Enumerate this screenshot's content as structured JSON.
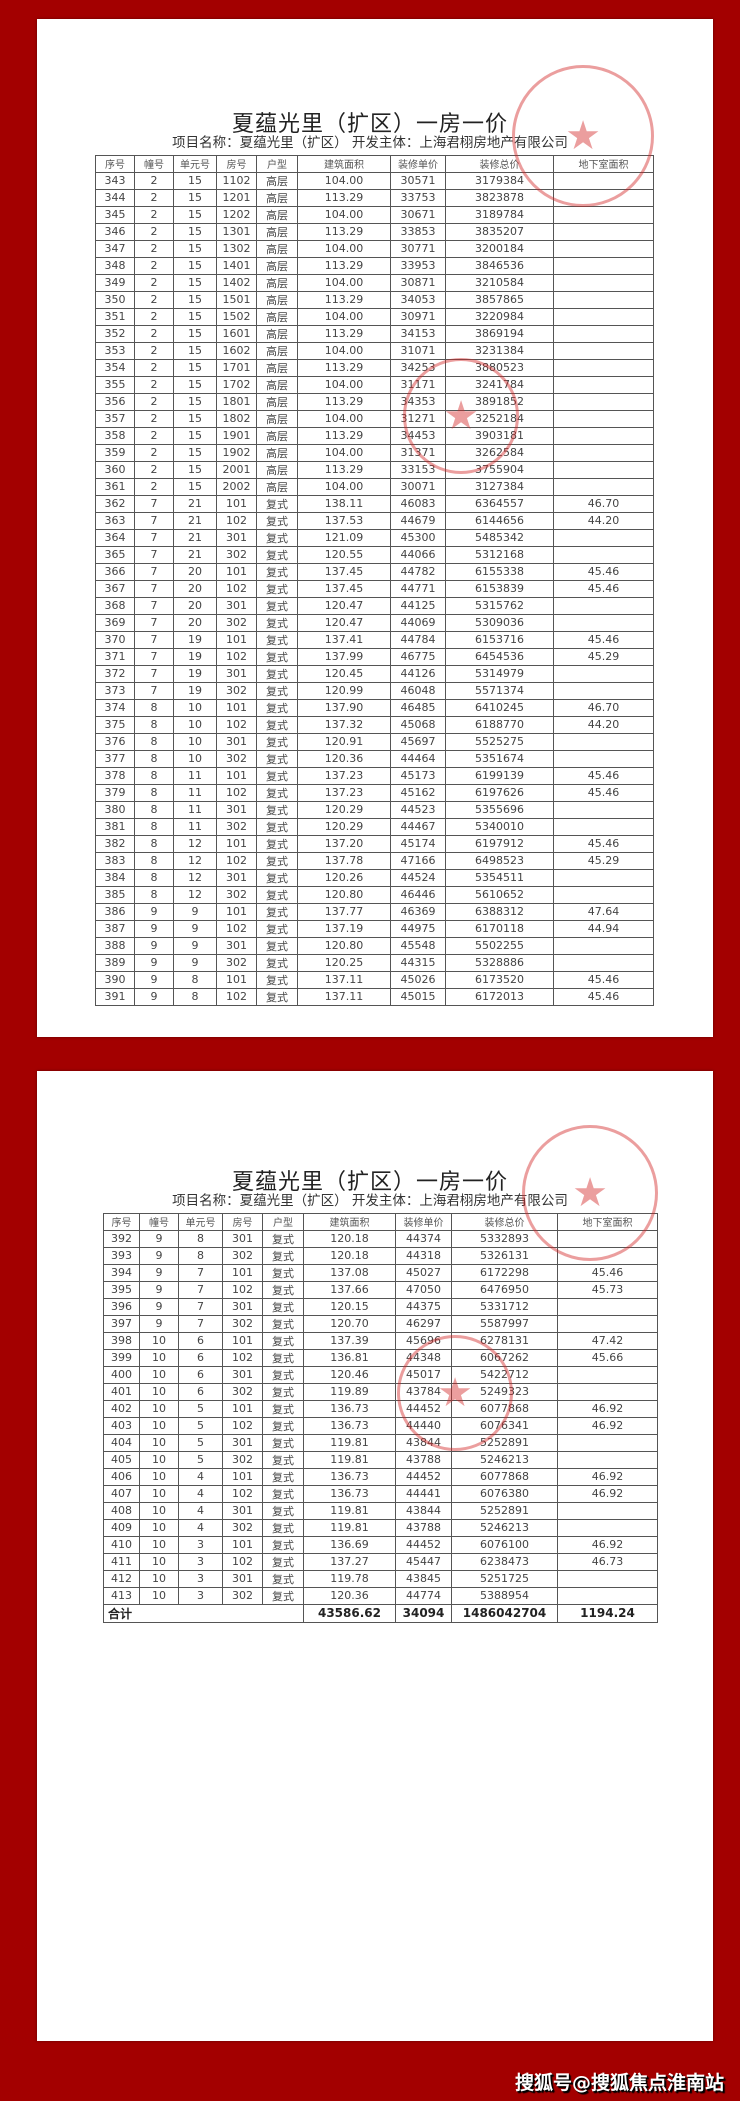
{
  "document": {
    "title": "夏蕴光里（扩区）一房一价",
    "subtitle": "项目名称：夏蕴光里（扩区）   开发主体：上海君栩房地产有限公司",
    "columns": [
      "序号",
      "幢号",
      "单元号",
      "房号",
      "户型",
      "建筑面积",
      "装修单价",
      "装修总价",
      "地下室面积"
    ]
  },
  "pages": [
    {
      "rows": [
        [
          "343",
          "2",
          "15",
          "1102",
          "高层",
          "104.00",
          "30571",
          "3179384",
          ""
        ],
        [
          "344",
          "2",
          "15",
          "1201",
          "高层",
          "113.29",
          "33753",
          "3823878",
          ""
        ],
        [
          "345",
          "2",
          "15",
          "1202",
          "高层",
          "104.00",
          "30671",
          "3189784",
          ""
        ],
        [
          "346",
          "2",
          "15",
          "1301",
          "高层",
          "113.29",
          "33853",
          "3835207",
          ""
        ],
        [
          "347",
          "2",
          "15",
          "1302",
          "高层",
          "104.00",
          "30771",
          "3200184",
          ""
        ],
        [
          "348",
          "2",
          "15",
          "1401",
          "高层",
          "113.29",
          "33953",
          "3846536",
          ""
        ],
        [
          "349",
          "2",
          "15",
          "1402",
          "高层",
          "104.00",
          "30871",
          "3210584",
          ""
        ],
        [
          "350",
          "2",
          "15",
          "1501",
          "高层",
          "113.29",
          "34053",
          "3857865",
          ""
        ],
        [
          "351",
          "2",
          "15",
          "1502",
          "高层",
          "104.00",
          "30971",
          "3220984",
          ""
        ],
        [
          "352",
          "2",
          "15",
          "1601",
          "高层",
          "113.29",
          "34153",
          "3869194",
          ""
        ],
        [
          "353",
          "2",
          "15",
          "1602",
          "高层",
          "104.00",
          "31071",
          "3231384",
          ""
        ],
        [
          "354",
          "2",
          "15",
          "1701",
          "高层",
          "113.29",
          "34253",
          "3880523",
          ""
        ],
        [
          "355",
          "2",
          "15",
          "1702",
          "高层",
          "104.00",
          "31171",
          "3241784",
          ""
        ],
        [
          "356",
          "2",
          "15",
          "1801",
          "高层",
          "113.29",
          "34353",
          "3891852",
          ""
        ],
        [
          "357",
          "2",
          "15",
          "1802",
          "高层",
          "104.00",
          "31271",
          "3252184",
          ""
        ],
        [
          "358",
          "2",
          "15",
          "1901",
          "高层",
          "113.29",
          "34453",
          "3903181",
          ""
        ],
        [
          "359",
          "2",
          "15",
          "1902",
          "高层",
          "104.00",
          "31371",
          "3262584",
          ""
        ],
        [
          "360",
          "2",
          "15",
          "2001",
          "高层",
          "113.29",
          "33153",
          "3755904",
          ""
        ],
        [
          "361",
          "2",
          "15",
          "2002",
          "高层",
          "104.00",
          "30071",
          "3127384",
          ""
        ],
        [
          "362",
          "7",
          "21",
          "101",
          "复式",
          "138.11",
          "46083",
          "6364557",
          "46.70"
        ],
        [
          "363",
          "7",
          "21",
          "102",
          "复式",
          "137.53",
          "44679",
          "6144656",
          "44.20"
        ],
        [
          "364",
          "7",
          "21",
          "301",
          "复式",
          "121.09",
          "45300",
          "5485342",
          ""
        ],
        [
          "365",
          "7",
          "21",
          "302",
          "复式",
          "120.55",
          "44066",
          "5312168",
          ""
        ],
        [
          "366",
          "7",
          "20",
          "101",
          "复式",
          "137.45",
          "44782",
          "6155338",
          "45.46"
        ],
        [
          "367",
          "7",
          "20",
          "102",
          "复式",
          "137.45",
          "44771",
          "6153839",
          "45.46"
        ],
        [
          "368",
          "7",
          "20",
          "301",
          "复式",
          "120.47",
          "44125",
          "5315762",
          ""
        ],
        [
          "369",
          "7",
          "20",
          "302",
          "复式",
          "120.47",
          "44069",
          "5309036",
          ""
        ],
        [
          "370",
          "7",
          "19",
          "101",
          "复式",
          "137.41",
          "44784",
          "6153716",
          "45.46"
        ],
        [
          "371",
          "7",
          "19",
          "102",
          "复式",
          "137.99",
          "46775",
          "6454536",
          "45.29"
        ],
        [
          "372",
          "7",
          "19",
          "301",
          "复式",
          "120.45",
          "44126",
          "5314979",
          ""
        ],
        [
          "373",
          "7",
          "19",
          "302",
          "复式",
          "120.99",
          "46048",
          "5571374",
          ""
        ],
        [
          "374",
          "8",
          "10",
          "101",
          "复式",
          "137.90",
          "46485",
          "6410245",
          "46.70"
        ],
        [
          "375",
          "8",
          "10",
          "102",
          "复式",
          "137.32",
          "45068",
          "6188770",
          "44.20"
        ],
        [
          "376",
          "8",
          "10",
          "301",
          "复式",
          "120.91",
          "45697",
          "5525275",
          ""
        ],
        [
          "377",
          "8",
          "10",
          "302",
          "复式",
          "120.36",
          "44464",
          "5351674",
          ""
        ],
        [
          "378",
          "8",
          "11",
          "101",
          "复式",
          "137.23",
          "45173",
          "6199139",
          "45.46"
        ],
        [
          "379",
          "8",
          "11",
          "102",
          "复式",
          "137.23",
          "45162",
          "6197626",
          "45.46"
        ],
        [
          "380",
          "8",
          "11",
          "301",
          "复式",
          "120.29",
          "44523",
          "5355696",
          ""
        ],
        [
          "381",
          "8",
          "11",
          "302",
          "复式",
          "120.29",
          "44467",
          "5340010",
          ""
        ],
        [
          "382",
          "8",
          "12",
          "101",
          "复式",
          "137.20",
          "45174",
          "6197912",
          "45.46"
        ],
        [
          "383",
          "8",
          "12",
          "102",
          "复式",
          "137.78",
          "47166",
          "6498523",
          "45.29"
        ],
        [
          "384",
          "8",
          "12",
          "301",
          "复式",
          "120.26",
          "44524",
          "5354511",
          ""
        ],
        [
          "385",
          "8",
          "12",
          "302",
          "复式",
          "120.80",
          "46446",
          "5610652",
          ""
        ],
        [
          "386",
          "9",
          "9",
          "101",
          "复式",
          "137.77",
          "46369",
          "6388312",
          "47.64"
        ],
        [
          "387",
          "9",
          "9",
          "102",
          "复式",
          "137.19",
          "44975",
          "6170118",
          "44.94"
        ],
        [
          "388",
          "9",
          "9",
          "301",
          "复式",
          "120.80",
          "45548",
          "5502255",
          ""
        ],
        [
          "389",
          "9",
          "9",
          "302",
          "复式",
          "120.25",
          "44315",
          "5328886",
          ""
        ],
        [
          "390",
          "9",
          "8",
          "101",
          "复式",
          "137.11",
          "45026",
          "6173520",
          "45.46"
        ],
        [
          "391",
          "9",
          "8",
          "102",
          "复式",
          "137.11",
          "45015",
          "6172013",
          "45.46"
        ]
      ]
    },
    {
      "rows": [
        [
          "392",
          "9",
          "8",
          "301",
          "复式",
          "120.18",
          "44374",
          "5332893",
          ""
        ],
        [
          "393",
          "9",
          "8",
          "302",
          "复式",
          "120.18",
          "44318",
          "5326131",
          ""
        ],
        [
          "394",
          "9",
          "7",
          "101",
          "复式",
          "137.08",
          "45027",
          "6172298",
          "45.46"
        ],
        [
          "395",
          "9",
          "7",
          "102",
          "复式",
          "137.66",
          "47050",
          "6476950",
          "45.73"
        ],
        [
          "396",
          "9",
          "7",
          "301",
          "复式",
          "120.15",
          "44375",
          "5331712",
          ""
        ],
        [
          "397",
          "9",
          "7",
          "302",
          "复式",
          "120.70",
          "46297",
          "5587997",
          ""
        ],
        [
          "398",
          "10",
          "6",
          "101",
          "复式",
          "137.39",
          "45696",
          "6278131",
          "47.42"
        ],
        [
          "399",
          "10",
          "6",
          "102",
          "复式",
          "136.81",
          "44348",
          "6067262",
          "45.66"
        ],
        [
          "400",
          "10",
          "6",
          "301",
          "复式",
          "120.46",
          "45017",
          "5422712",
          ""
        ],
        [
          "401",
          "10",
          "6",
          "302",
          "复式",
          "119.89",
          "43784",
          "5249323",
          ""
        ],
        [
          "402",
          "10",
          "5",
          "101",
          "复式",
          "136.73",
          "44452",
          "6077868",
          "46.92"
        ],
        [
          "403",
          "10",
          "5",
          "102",
          "复式",
          "136.73",
          "44440",
          "6076341",
          "46.92"
        ],
        [
          "404",
          "10",
          "5",
          "301",
          "复式",
          "119.81",
          "43844",
          "5252891",
          ""
        ],
        [
          "405",
          "10",
          "5",
          "302",
          "复式",
          "119.81",
          "43788",
          "5246213",
          ""
        ],
        [
          "406",
          "10",
          "4",
          "101",
          "复式",
          "136.73",
          "44452",
          "6077868",
          "46.92"
        ],
        [
          "407",
          "10",
          "4",
          "102",
          "复式",
          "136.73",
          "44441",
          "6076380",
          "46.92"
        ],
        [
          "408",
          "10",
          "4",
          "301",
          "复式",
          "119.81",
          "43844",
          "5252891",
          ""
        ],
        [
          "409",
          "10",
          "4",
          "302",
          "复式",
          "119.81",
          "43788",
          "5246213",
          ""
        ],
        [
          "410",
          "10",
          "3",
          "101",
          "复式",
          "136.69",
          "44452",
          "6076100",
          "46.92"
        ],
        [
          "411",
          "10",
          "3",
          "102",
          "复式",
          "137.27",
          "45447",
          "6238473",
          "46.73"
        ],
        [
          "412",
          "10",
          "3",
          "301",
          "复式",
          "119.78",
          "43845",
          "5251725",
          ""
        ],
        [
          "413",
          "10",
          "3",
          "302",
          "复式",
          "120.36",
          "44774",
          "5388954",
          ""
        ]
      ],
      "total": {
        "label": "合计",
        "area": "43586.62",
        "unit_price": "34094",
        "total_price": "1486042704",
        "basement_area": "1194.24"
      }
    }
  ],
  "watermark": "搜狐号@搜狐焦点淮南站",
  "colors": {
    "background": "#a30000",
    "stamp": "#d22828"
  },
  "icons": [
    "official-seal-stamp"
  ]
}
